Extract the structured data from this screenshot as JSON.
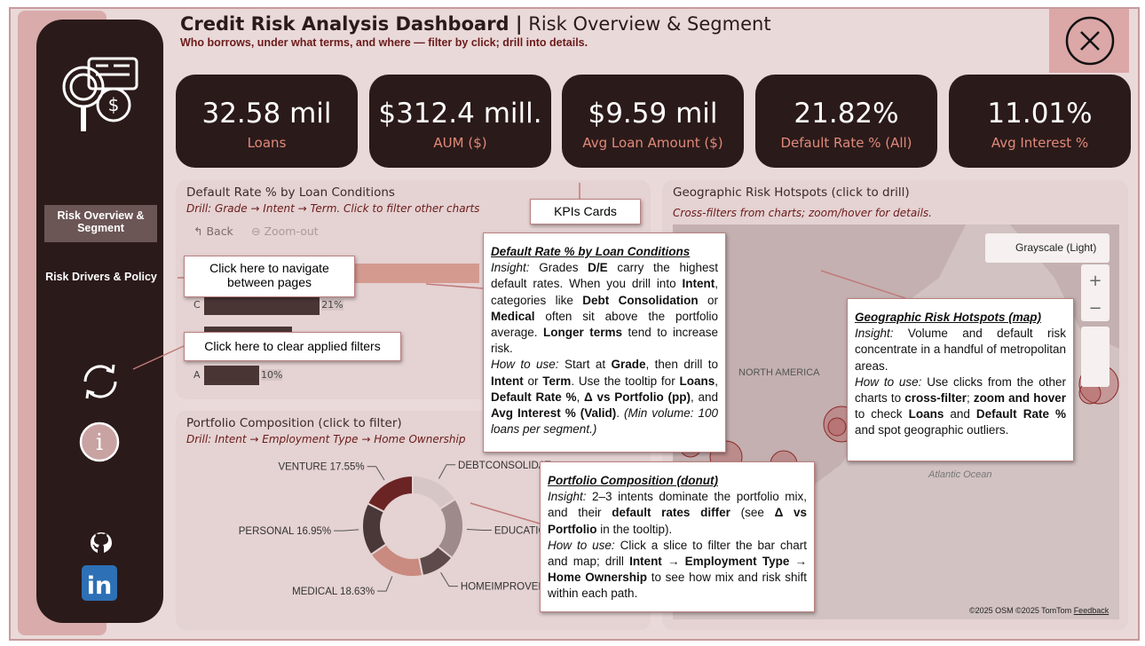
{
  "header": {
    "title": "Credit Risk Analysis Dashboard |",
    "page_name": "Risk Overview & Segment",
    "subtitle": "Who borrows, under what terms, and where — filter by click; drill into details."
  },
  "nav": {
    "items": [
      "Risk Overview & Segment",
      "Risk Drivers & Policy"
    ]
  },
  "kpis": [
    {
      "value": "32.58 mil",
      "label": "Loans"
    },
    {
      "value": "$312.4 mill.",
      "label": "AUM ($)"
    },
    {
      "value": "$9.59 mil",
      "label": "Avg Loan Amount ($)"
    },
    {
      "value": "21.82%",
      "label": "Default Rate % (All)"
    },
    {
      "value": "11.01%",
      "label": "Avg Interest %"
    }
  ],
  "bar_chart": {
    "title": "Default Rate % by Loan Conditions",
    "subtitle": "Drill: Grade → Intent → Term. Click to filter other charts",
    "buttons": [
      "Back",
      "Zoom-out"
    ],
    "categories": [
      null,
      "C",
      null,
      "A"
    ],
    "values": [
      50,
      21,
      16,
      10
    ],
    "value_labels": [
      null,
      "21%",
      null,
      "10%"
    ],
    "colors": [
      "#d49a90",
      "#4a3535",
      "#4a3535",
      "#4a3535"
    ]
  },
  "donut": {
    "title": "Portfolio Composition (click to filter)",
    "subtitle": "Drill: Intent → Employment Type → Home Ownership",
    "labels": [
      "DEBTCONSOLIDAT",
      "EDUCATION",
      "HOMEIMPROVEM",
      "MEDICAL 18.63%",
      "PERSONAL 16.95%",
      "VENTURE 17.55%"
    ],
    "values": [
      16,
      19.8,
      11.07,
      18.63,
      16.95,
      17.55
    ],
    "colors": [
      "#d7c6c6",
      "#9e8a8a",
      "#5e4a4a",
      "#c98a80",
      "#4a3838",
      "#6b2424"
    ]
  },
  "map": {
    "title": "Geographic Risk Hotspots (click to drill)",
    "subtitle": "Cross-filters from charts; zoom/hover for details.",
    "style_button": "Grayscale (Light)",
    "labels": [
      "NORTH AMERICA",
      "Atlantic Ocean"
    ],
    "credits": [
      "©2025 OSM",
      "©2025 TomTom",
      "Feedback"
    ]
  },
  "callouts": {
    "kpi": "KPIs Cards",
    "navigate": "Click here to navigate between pages",
    "clear": "Click here to clear applied filters",
    "notes": [
      {
        "title": "Default Rate % by Loan Conditions",
        "body": [
          [
            {
              "i": "Insight:"
            },
            " Grades ",
            {
              "b": "D/E"
            },
            " carry the highest default rates. When you drill into ",
            {
              "b": "Intent"
            },
            ", categories like ",
            {
              "b": "Debt Consolidation"
            },
            " or ",
            {
              "b": "Medical"
            },
            " often sit above the portfolio average. ",
            {
              "b": "Longer terms"
            },
            " tend to increase risk."
          ],
          [
            {
              "i": "How to use:"
            },
            " Start at ",
            {
              "b": "Grade"
            },
            ", then drill to ",
            {
              "b": "Intent"
            },
            " or ",
            {
              "b": "Term"
            },
            ". Use the tooltip for ",
            {
              "b": "Loans"
            },
            ", ",
            {
              "b": "Default Rate %"
            },
            ", ",
            {
              "b": "Δ vs Portfolio (pp)"
            },
            ", and ",
            {
              "b": "Avg Interest % (Valid)"
            },
            ". ",
            {
              "i": "(Min volume: 100 loans per segment.)"
            }
          ]
        ]
      },
      {
        "title": "Portfolio Composition (donut)",
        "body": [
          [
            {
              "i": "Insight:"
            },
            " 2–3 intents dominate the portfolio mix, and their ",
            {
              "b": "default rates differ"
            },
            " (see ",
            {
              "b": "Δ vs Portfolio"
            },
            " in the tooltip)."
          ],
          [
            {
              "i": "How to use:"
            },
            " Click a slice to filter the bar chart and map; drill ",
            {
              "b": "Intent → Employment Type → Home Ownership"
            },
            " to see how mix and risk shift within each path."
          ]
        ]
      },
      {
        "title": "Geographic Risk Hotspots (map)",
        "body": [
          [
            {
              "i": "Insight:"
            },
            " Volume and default risk concentrate in a handful of metropolitan areas."
          ],
          [
            {
              "i": "How to use:"
            },
            " Use clicks from the other charts to ",
            {
              "b": "cross-filter"
            },
            "; ",
            {
              "b": "zoom and hover"
            },
            " to check ",
            {
              "b": "Loans"
            },
            " and ",
            {
              "b": "Default Rate %"
            },
            " and spot geographic outliers."
          ]
        ]
      }
    ]
  }
}
